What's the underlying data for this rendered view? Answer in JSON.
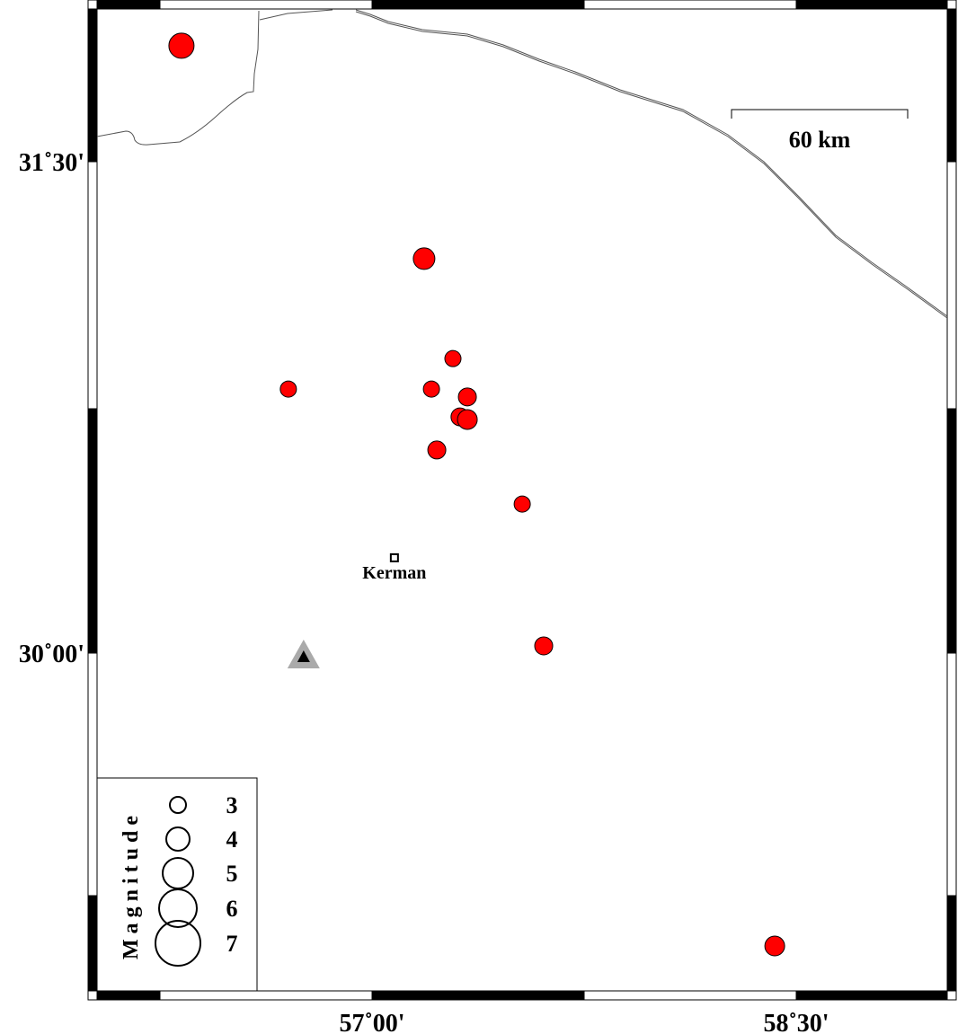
{
  "map": {
    "colors": {
      "event_fill": "#ff0000",
      "event_stroke": "#000000",
      "boundary": "#555555",
      "station_outer": "#aaaaaa",
      "station_inner": "#000000"
    },
    "lon_ticks": [
      {
        "value": 57.0,
        "label": "57˚00'"
      },
      {
        "value": 58.5,
        "label": "58˚30'"
      }
    ],
    "lat_ticks": [
      {
        "value": 31.5,
        "label": "31˚30'"
      },
      {
        "value": 30.0,
        "label": "30˚00'"
      }
    ],
    "scale_bar": {
      "label": "60 km"
    },
    "city": {
      "name": "Kerman",
      "lon": 57.079,
      "lat": 30.291
    },
    "station": {
      "icon": "triangle-icon",
      "lon": 56.758,
      "lat": 29.989
    },
    "events": [
      {
        "lon": 56.326,
        "lat": 31.854,
        "mag": 4.25
      },
      {
        "lon": 57.184,
        "lat": 31.204,
        "mag": 3.75
      },
      {
        "lon": 57.286,
        "lat": 30.899,
        "mag": 3.0
      },
      {
        "lon": 56.704,
        "lat": 30.806,
        "mag": 3.0
      },
      {
        "lon": 57.21,
        "lat": 30.806,
        "mag": 3.0
      },
      {
        "lon": 57.337,
        "lat": 30.782,
        "mag": 3.25
      },
      {
        "lon": 57.311,
        "lat": 30.721,
        "mag": 3.25
      },
      {
        "lon": 57.337,
        "lat": 30.713,
        "mag": 3.5
      },
      {
        "lon": 57.229,
        "lat": 30.62,
        "mag": 3.25
      },
      {
        "lon": 57.531,
        "lat": 30.455,
        "mag": 3.0
      },
      {
        "lon": 57.607,
        "lat": 30.022,
        "mag": 3.25
      },
      {
        "lon": 58.424,
        "lat": 29.106,
        "mag": 3.5
      }
    ],
    "legend": {
      "title": "Magnitude",
      "items": [
        {
          "mag": 3,
          "label": "3"
        },
        {
          "mag": 4,
          "label": "4"
        },
        {
          "mag": 5,
          "label": "5"
        },
        {
          "mag": 6,
          "label": "6"
        },
        {
          "mag": 7,
          "label": "7"
        }
      ]
    }
  }
}
